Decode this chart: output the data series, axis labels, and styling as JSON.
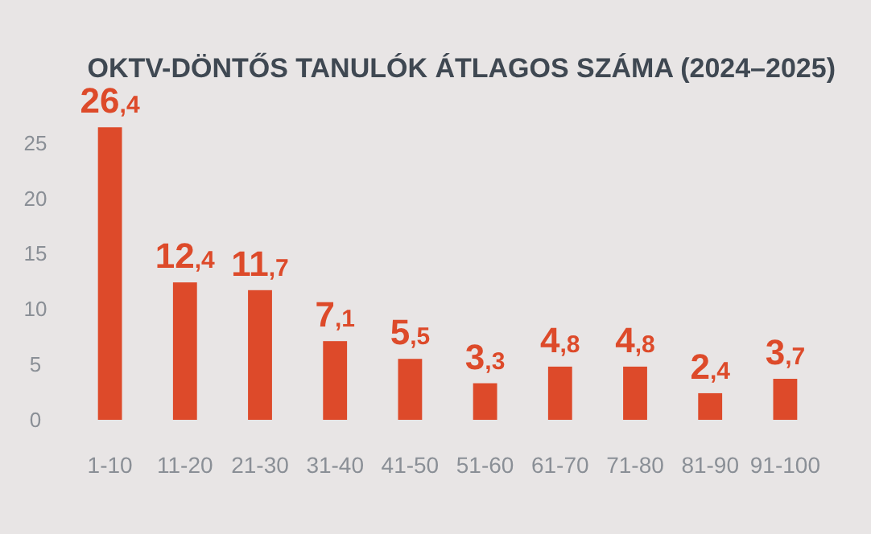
{
  "chart_data": {
    "type": "bar",
    "title": "OKTV-DÖNTŐS TANULÓK ÁTLAGOS SZÁMA (2024–2025)",
    "categories": [
      "1-10",
      "11-20",
      "21-30",
      "31-40",
      "41-50",
      "51-60",
      "61-70",
      "71-80",
      "81-90",
      "91-100"
    ],
    "values": [
      26.4,
      12.4,
      11.7,
      7.1,
      5.5,
      3.3,
      4.8,
      4.8,
      2.4,
      3.7
    ],
    "value_labels": [
      "26,4",
      "12,4",
      "11,7",
      "7,1",
      "5,5",
      "3,3",
      "4,8",
      "4,8",
      "2,4",
      "3,7"
    ],
    "color": "#dd4a2a",
    "ylim": [
      0,
      27
    ],
    "yticks": [
      0,
      5,
      10,
      15,
      20,
      25
    ],
    "grid": false
  }
}
